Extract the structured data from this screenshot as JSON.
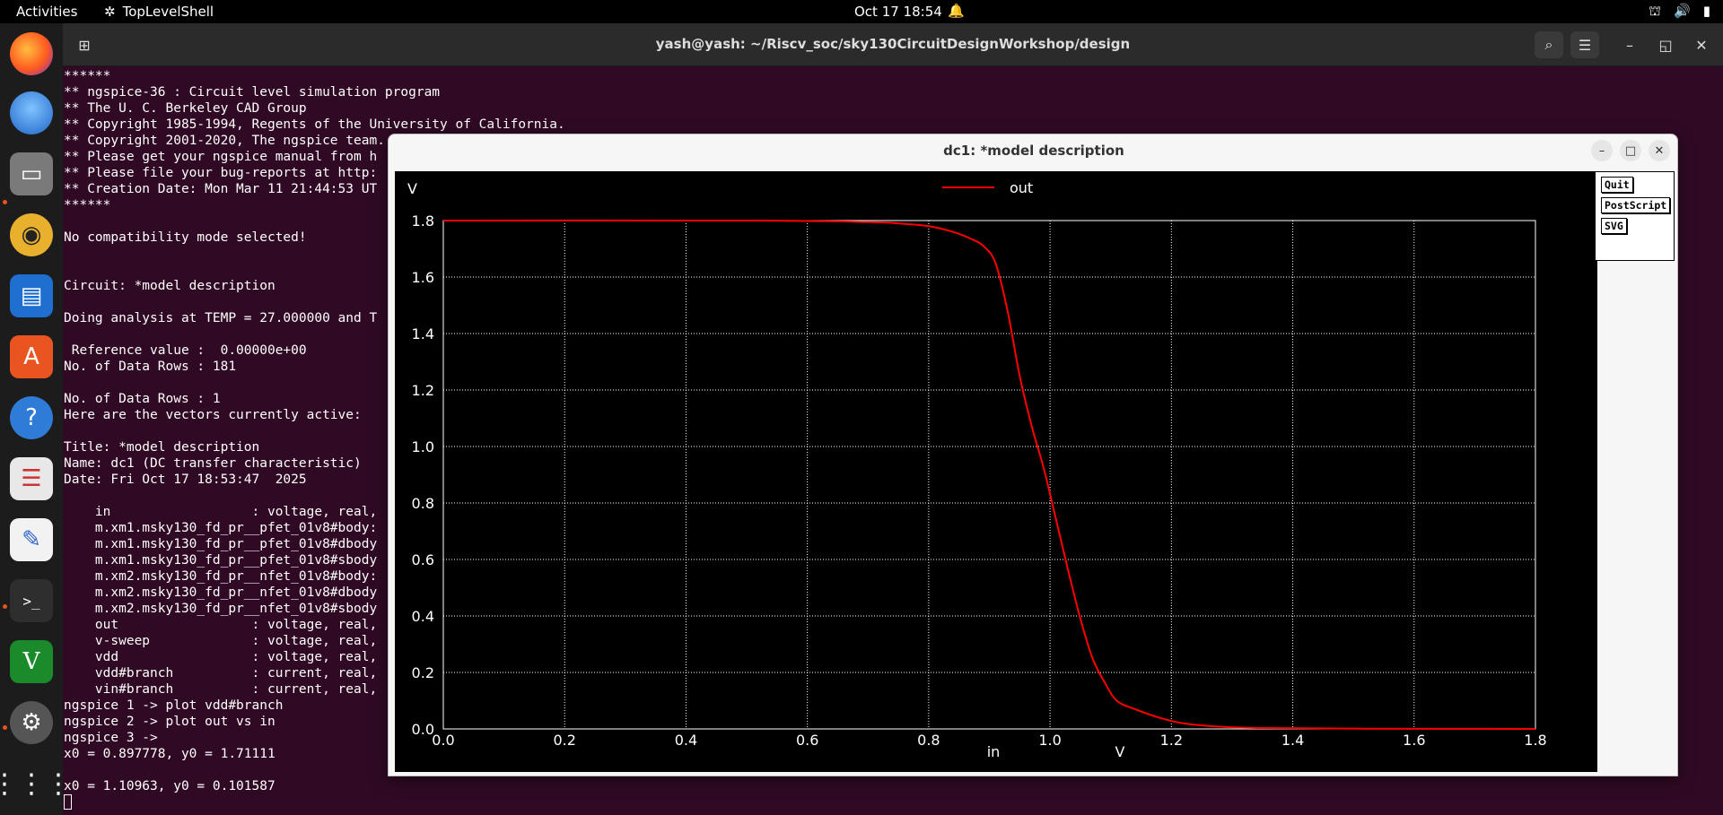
{
  "topbar": {
    "activities": "Activities",
    "app_name": "TopLevelShell",
    "clock": "Oct 17  18:54"
  },
  "dock": {
    "items": [
      "firefox-icon",
      "thunderbird-icon",
      "files-icon",
      "rhythmbox-icon",
      "writer-icon",
      "app-center-icon",
      "help-icon",
      "document-viewer-icon",
      "text-editor-icon",
      "terminal-icon",
      "vim-icon",
      "settings-icon",
      "show-apps-icon"
    ]
  },
  "terminal": {
    "title": "yash@yash: ~/Riscv_soc/sky130CircuitDesignWorkshop/design",
    "lines": [
      "******",
      "** ngspice-36 : Circuit level simulation program",
      "** The U. C. Berkeley CAD Group",
      "** Copyright 1985-1994, Regents of the University of California.",
      "** Copyright 2001-2020, The ngspice team.",
      "** Please get your ngspice manual from h",
      "** Please file your bug-reports at http:",
      "** Creation Date: Mon Mar 11 21:44:53 UT",
      "******",
      "",
      "No compatibility mode selected!",
      "",
      "",
      "Circuit: *model description",
      "",
      "Doing analysis at TEMP = 27.000000 and T",
      "",
      " Reference value :  0.00000e+00",
      "No. of Data Rows : 181",
      "",
      "No. of Data Rows : 1",
      "Here are the vectors currently active:",
      "",
      "Title: *model description",
      "Name: dc1 (DC transfer characteristic)",
      "Date: Fri Oct 17 18:53:47  2025",
      "",
      "    in                  : voltage, real,",
      "    m.xm1.msky130_fd_pr__pfet_01v8#body:",
      "    m.xm1.msky130_fd_pr__pfet_01v8#dbody",
      "    m.xm1.msky130_fd_pr__pfet_01v8#sbody",
      "    m.xm2.msky130_fd_pr__nfet_01v8#body:",
      "    m.xm2.msky130_fd_pr__nfet_01v8#dbody",
      "    m.xm2.msky130_fd_pr__nfet_01v8#sbody",
      "    out                 : voltage, real,",
      "    v-sweep             : voltage, real,",
      "    vdd                 : voltage, real,",
      "    vdd#branch          : current, real,",
      "    vin#branch          : current, real,",
      "ngspice 1 -> plot vdd#branch",
      "ngspice 2 -> plot out vs in",
      "ngspice 3 -> ",
      "x0 = 0.897778, y0 = 1.71111",
      "",
      "x0 = 1.10963, y0 = 0.101587"
    ]
  },
  "plot_window": {
    "title": "dc1: *model description",
    "buttons": {
      "quit": "Quit",
      "postscript": "PostScript",
      "svg": "SVG"
    },
    "colors": {
      "background": "#000000",
      "grid": "#ffffff",
      "trace": "#ff0000"
    }
  },
  "chart_data": {
    "type": "line",
    "xlabel": "in",
    "xunit": "V",
    "ylabel": "V",
    "xlim": [
      0.0,
      1.8
    ],
    "ylim": [
      0.0,
      1.8
    ],
    "xticks": [
      "0.0",
      "0.2",
      "0.4",
      "0.6",
      "0.8",
      "1.0",
      "1.2",
      "1.4",
      "1.6",
      "1.8"
    ],
    "yticks": [
      "0.0",
      "0.2",
      "0.4",
      "0.6",
      "0.8",
      "1.0",
      "1.2",
      "1.4",
      "1.6",
      "1.8"
    ],
    "grid": true,
    "legend": "top-center",
    "series": [
      {
        "name": "out",
        "color": "#ff0000",
        "x": [
          0.0,
          0.5,
          0.7,
          0.75,
          0.8,
          0.84,
          0.87,
          0.89,
          0.91,
          0.93,
          0.95,
          0.97,
          0.99,
          1.01,
          1.03,
          1.05,
          1.07,
          1.09,
          1.11,
          1.14,
          1.18,
          1.22,
          1.28,
          1.35,
          1.5,
          1.8
        ],
        "y": [
          1.8,
          1.8,
          1.795,
          1.79,
          1.78,
          1.76,
          1.735,
          1.71,
          1.65,
          1.48,
          1.25,
          1.07,
          0.92,
          0.74,
          0.56,
          0.39,
          0.25,
          0.165,
          0.1,
          0.07,
          0.04,
          0.02,
          0.008,
          0.003,
          0.001,
          0.0
        ]
      }
    ]
  }
}
